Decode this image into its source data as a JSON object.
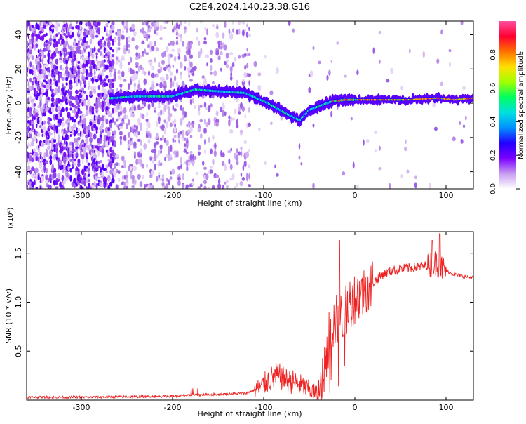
{
  "title": "C2E4.2024.140.23.38.G16",
  "chart_data": [
    {
      "type": "heatmap",
      "xlabel": "Height of straight line (km)",
      "ylabel": "Frequency (Hz)",
      "xlim": [
        -360,
        130
      ],
      "ylim": [
        -50,
        48
      ],
      "x_ticks": [
        -300,
        -200,
        -100,
        0,
        100
      ],
      "y_ticks": [
        -40,
        -20,
        0,
        20,
        40
      ],
      "ridge": {
        "x": [
          -265,
          -240,
          -200,
          -175,
          -150,
          -120,
          -95,
          -75,
          -60,
          -50,
          -40,
          -25,
          -10,
          0,
          30,
          60,
          90,
          110,
          130
        ],
        "freq": [
          3,
          4,
          4,
          8,
          7,
          6,
          0,
          -6,
          -10,
          -4,
          -2,
          1,
          2,
          2,
          2,
          2,
          3,
          2,
          3
        ]
      },
      "colorbar": {
        "label": "Normalized spectral amplitude",
        "ticks": [
          0.0,
          0.2,
          0.4,
          0.6,
          0.8
        ],
        "colors": [
          "#ffffff",
          "#c79cf0",
          "#7a00ff",
          "#2200ff",
          "#0090ff",
          "#00e0e0",
          "#00ff60",
          "#a0ff00",
          "#ffe000",
          "#ff7000",
          "#ff0030",
          "#ff50a0"
        ]
      },
      "grid": false
    },
    {
      "type": "line",
      "xlabel": "Height of straight line (km)",
      "ylabel": "SNR (10 * v/v)",
      "y_multiplier": "(x10⁴)",
      "xlim": [
        -360,
        130
      ],
      "ylim": [
        0,
        1.72
      ],
      "x_ticks": [
        -300,
        -200,
        -100,
        0,
        100
      ],
      "y_ticks": [
        0.5,
        1.0,
        1.5
      ],
      "y_tick_labels": [
        "0.5",
        "1.0",
        "1.5"
      ],
      "x_tick_labels": [
        "-300",
        "-200",
        "-100",
        "0",
        "100"
      ],
      "color": "#ee2222",
      "envelope": {
        "x": [
          -360,
          -300,
          -250,
          -200,
          -180,
          -150,
          -120,
          -105,
          -95,
          -85,
          -75,
          -65,
          -55,
          -45,
          -38,
          -32,
          -28,
          -22,
          -18,
          -12,
          -5,
          0,
          10,
          20,
          30,
          40,
          50,
          60,
          70,
          80,
          90,
          95,
          100,
          110,
          120,
          130
        ],
        "y": [
          0.03,
          0.03,
          0.035,
          0.04,
          0.05,
          0.06,
          0.07,
          0.12,
          0.2,
          0.25,
          0.2,
          0.18,
          0.13,
          0.08,
          0.05,
          0.35,
          0.7,
          0.8,
          0.82,
          0.85,
          1.0,
          1.05,
          1.1,
          1.2,
          1.28,
          1.32,
          1.34,
          1.35,
          1.36,
          1.38,
          1.4,
          1.35,
          1.32,
          1.28,
          1.26,
          1.25
        ]
      },
      "grid": false
    }
  ],
  "labels": {
    "top_x_ticks": [
      "-300",
      "-200",
      "-100",
      "0",
      "100"
    ],
    "top_y_ticks": [
      "40",
      "20",
      "0",
      "-20",
      "-40"
    ],
    "cb_ticks": [
      "0.0",
      "0.2",
      "0.4",
      "0.6",
      "0.8"
    ]
  }
}
